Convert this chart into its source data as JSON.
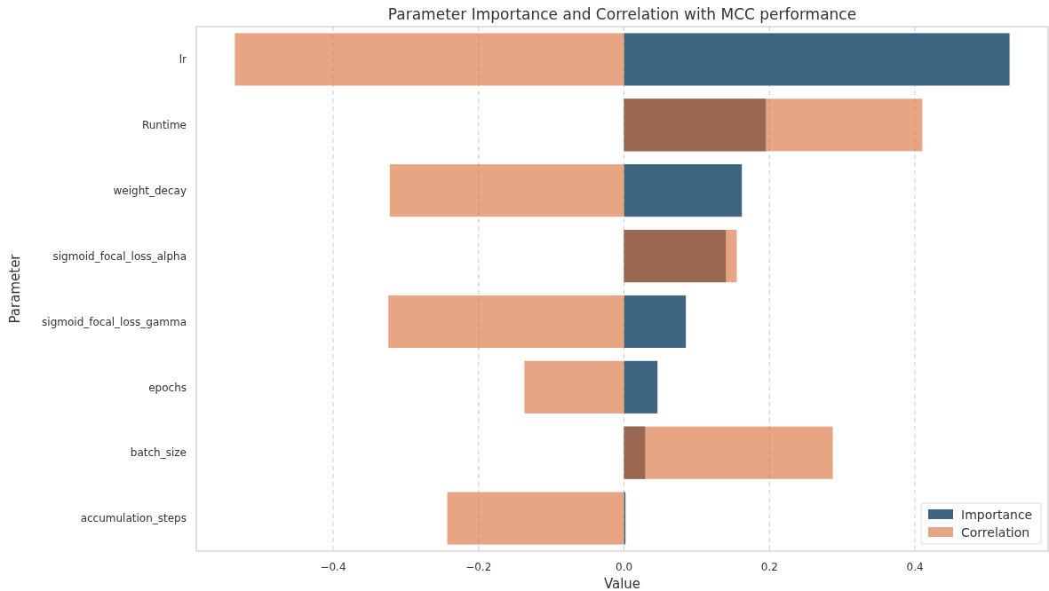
{
  "chart_data": {
    "type": "bar",
    "orientation": "horizontal",
    "title": "Parameter Importance and Correlation with MCC performance",
    "xlabel": "Value",
    "ylabel": "Parameter",
    "categories": [
      "lr",
      "Runtime",
      "weight_decay",
      "sigmoid_focal_loss_alpha",
      "sigmoid_focal_loss_gamma",
      "epochs",
      "batch_size",
      "accumulation_steps"
    ],
    "series": [
      {
        "name": "Importance",
        "color": "#3d6480",
        "values": [
          0.53,
          0.195,
          0.162,
          0.14,
          0.085,
          0.046,
          0.029,
          0.002
        ]
      },
      {
        "name": "Correlation",
        "color": "#e8a584",
        "values": [
          -0.535,
          0.41,
          -0.322,
          0.155,
          -0.324,
          -0.137,
          0.287,
          -0.243
        ]
      }
    ],
    "xlim": [
      -0.588,
      0.583
    ],
    "xticks": [
      {
        "value": -0.4,
        "label": "−0.4"
      },
      {
        "value": -0.2,
        "label": "−0.2"
      },
      {
        "value": 0.0,
        "label": "0.0"
      },
      {
        "value": 0.2,
        "label": "0.2"
      },
      {
        "value": 0.4,
        "label": "0.4"
      }
    ],
    "grid": "x",
    "legend": "bottom right"
  }
}
